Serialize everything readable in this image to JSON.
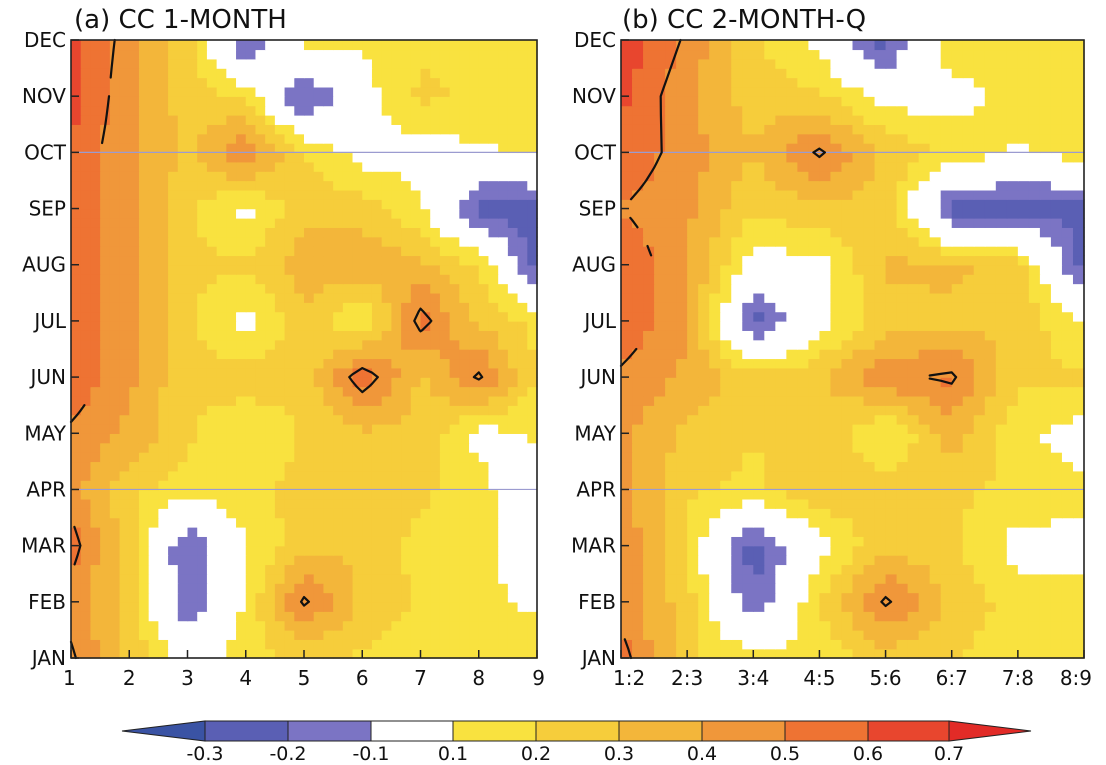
{
  "colors": {
    "lt_m03": "#3a53a4",
    "m03_m02": "#5a5fb4",
    "m02_m01": "#7b74c4",
    "m01_01": "#ffffff",
    "p01_02": "#f9e23f",
    "p02_03": "#f6cd3b",
    "p03_04": "#f3b63a",
    "p04_05": "#f0973a",
    "p05_06": "#ee7333",
    "p06_07": "#e8462e",
    "gt_07": "#e22b27"
  },
  "colorbar": {
    "tick_labels": [
      "-0.3",
      "-0.2",
      "-0.1",
      "0.1",
      "0.2",
      "0.3",
      "0.4",
      "0.5",
      "0.6",
      "0.7"
    ]
  },
  "chart_data": [
    {
      "type": "heatmap",
      "title": "(a) CC 1-MONTH",
      "x_tick_labels": [
        "1",
        "2",
        "3",
        "4",
        "5",
        "6",
        "7",
        "8",
        "9"
      ],
      "y_tick_labels": [
        "JAN",
        "FEB",
        "MAR",
        "APR",
        "MAY",
        "JUN",
        "JUL",
        "AUG",
        "SEP",
        "OCT",
        "NOV",
        "DEC"
      ],
      "x_range": [
        1,
        9
      ],
      "reference_lines_months": [
        "APR",
        "OCT"
      ],
      "contour_level": 0.5,
      "values": [
        [
          0.52,
          0.28,
          0.05,
          0.15,
          0.22,
          0.18,
          0.15,
          0.12,
          0.18
        ],
        [
          0.45,
          0.25,
          -0.2,
          0.12,
          0.52,
          0.28,
          0.18,
          0.12,
          0.08
        ],
        [
          0.55,
          0.24,
          -0.22,
          0.08,
          0.28,
          0.27,
          0.17,
          0.12,
          0.05
        ],
        [
          0.45,
          0.22,
          0.15,
          0.18,
          0.22,
          0.3,
          0.22,
          0.15,
          -0.05
        ],
        [
          0.48,
          0.38,
          0.22,
          0.09,
          0.22,
          0.28,
          0.28,
          0.05,
          0.12
        ],
        [
          0.58,
          0.42,
          0.22,
          0.27,
          0.22,
          0.58,
          0.28,
          0.52,
          0.18
        ],
        [
          0.58,
          0.42,
          0.22,
          0.05,
          0.28,
          0.08,
          0.55,
          0.28,
          0.18
        ],
        [
          0.58,
          0.42,
          0.22,
          0.22,
          0.35,
          0.38,
          0.32,
          0.2,
          -0.25
        ],
        [
          0.58,
          0.42,
          0.22,
          0.06,
          0.27,
          0.25,
          0.12,
          -0.25,
          -0.25
        ],
        [
          0.58,
          0.42,
          0.28,
          0.5,
          0.2,
          0.05,
          0.05,
          0.08,
          0.12
        ],
        [
          0.65,
          0.42,
          0.25,
          0.18,
          -0.25,
          0.05,
          0.22,
          0.18,
          0.15
        ],
        [
          0.65,
          0.45,
          0.25,
          -0.25,
          0.15,
          0.12,
          0.18,
          0.15,
          0.15
        ]
      ]
    },
    {
      "type": "heatmap",
      "title": "(b) CC 2-MONTH-Q",
      "x_tick_labels": [
        "1:2",
        "2:3",
        "3:4",
        "4:5",
        "5:6",
        "6:7",
        "7:8",
        "8:9"
      ],
      "y_tick_labels": [
        "JAN",
        "FEB",
        "MAR",
        "APR",
        "MAY",
        "JUN",
        "JUL",
        "AUG",
        "SEP",
        "OCT",
        "NOV",
        "DEC"
      ],
      "x_range": [
        "1:2",
        "8:9"
      ],
      "reference_lines_months": [
        "APR",
        "OCT"
      ],
      "contour_level": 0.5,
      "values": [
        [
          0.55,
          0.22,
          0.15,
          0.12,
          0.25,
          0.2,
          0.15,
          0.15
        ],
        [
          0.45,
          0.25,
          -0.2,
          0.2,
          0.52,
          0.28,
          0.15,
          0.12
        ],
        [
          0.48,
          0.18,
          -0.25,
          0.05,
          0.28,
          0.22,
          0.05,
          0.08
        ],
        [
          0.45,
          0.22,
          0.18,
          0.28,
          0.25,
          0.22,
          0.18,
          0.12
        ],
        [
          0.42,
          0.28,
          0.2,
          0.28,
          0.08,
          0.35,
          0.12,
          0.05
        ],
        [
          0.48,
          0.38,
          0.24,
          0.28,
          0.48,
          0.52,
          0.22,
          0.22
        ],
        [
          0.58,
          0.42,
          -0.25,
          0.05,
          0.25,
          0.28,
          0.28,
          0.08
        ],
        [
          0.58,
          0.42,
          0.05,
          0.05,
          0.32,
          0.32,
          0.25,
          -0.25
        ],
        [
          0.5,
          0.42,
          0.22,
          0.28,
          0.25,
          -0.25,
          -0.25,
          -0.25
        ],
        [
          0.58,
          0.45,
          0.3,
          0.52,
          0.28,
          0.18,
          0.08,
          0.15
        ],
        [
          0.62,
          0.42,
          0.25,
          0.22,
          0.05,
          0.05,
          0.15,
          0.15
        ],
        [
          0.68,
          0.48,
          0.22,
          0.05,
          -0.25,
          0.18,
          0.15,
          0.15
        ]
      ]
    }
  ]
}
